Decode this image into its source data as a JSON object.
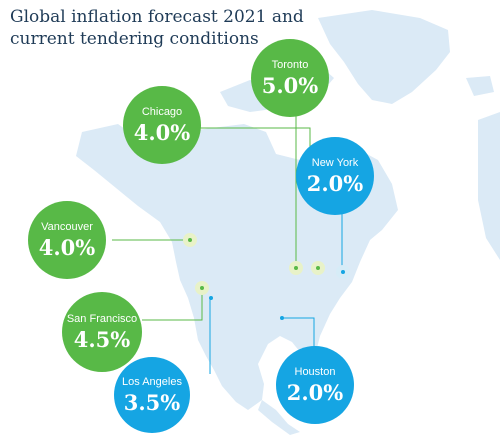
{
  "title": "Global inflation forecast  2021 and current tendering conditions",
  "colors": {
    "green_bubble": "#58b947",
    "blue_bubble": "#15a5e3",
    "land": "#dbeaf6",
    "title_text": "#1f3b57"
  },
  "cities": [
    {
      "name": "Toronto",
      "value": "5.0%",
      "color": "green"
    },
    {
      "name": "Chicago",
      "value": "4.0%",
      "color": "green"
    },
    {
      "name": "New York",
      "value": "2.0%",
      "color": "blue"
    },
    {
      "name": "Vancouver",
      "value": "4.0%",
      "color": "green"
    },
    {
      "name": "San Francisco",
      "value": "4.5%",
      "color": "green"
    },
    {
      "name": "Los Angeles",
      "value": "3.5%",
      "color": "blue"
    },
    {
      "name": "Houston",
      "value": "2.0%",
      "color": "blue"
    }
  ]
}
